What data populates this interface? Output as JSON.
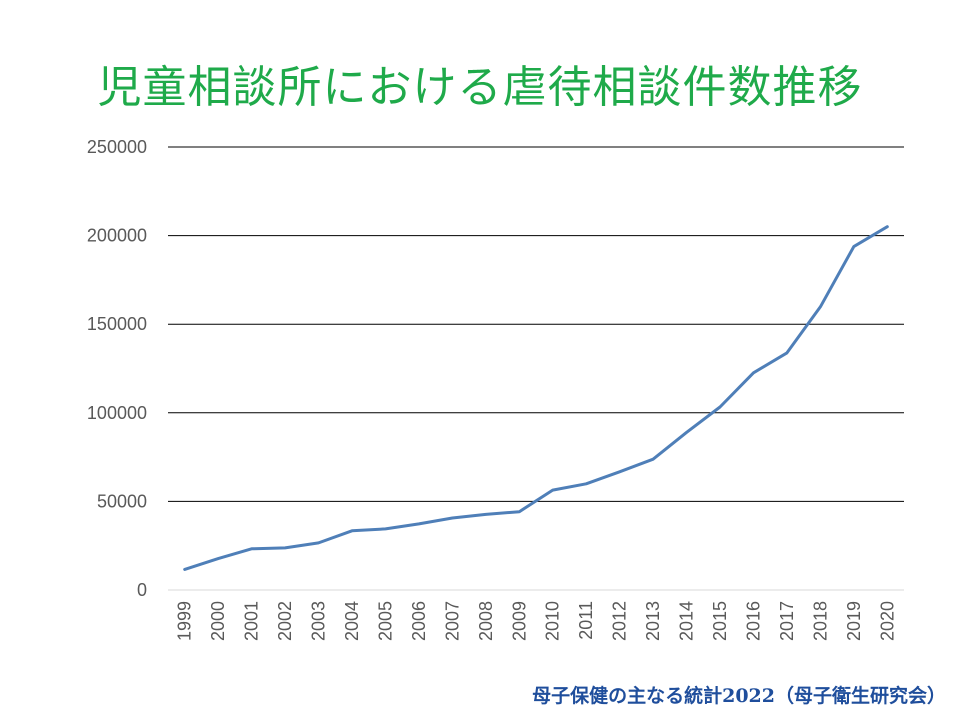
{
  "slide": {
    "title": "児童相談所における虐待相談件数推移",
    "source": "母子保健の主なる統計2022（母子衛生研究会）"
  },
  "colors": {
    "title": "#1faa4a",
    "source": "#1f4e9c",
    "series_line": "#4f7fb8",
    "gridline": "#000000",
    "axis_text": "#595959"
  },
  "chart_data": {
    "type": "line",
    "title": "児童相談所における虐待相談件数推移",
    "xlabel": "",
    "ylabel": "",
    "categories": [
      "1999",
      "2000",
      "2001",
      "2002",
      "2003",
      "2004",
      "2005",
      "2006",
      "2007",
      "2008",
      "2009",
      "2010",
      "2011",
      "2012",
      "2013",
      "2014",
      "2015",
      "2016",
      "2017",
      "2018",
      "2019",
      "2020"
    ],
    "series": [
      {
        "values": [
          11631,
          17725,
          23274,
          23738,
          26569,
          33408,
          34472,
          37323,
          40639,
          42664,
          44211,
          56384,
          59919,
          66701,
          73802,
          88931,
          103286,
          122575,
          133778,
          159838,
          193780,
          205044
        ]
      }
    ],
    "yticks": [
      "0",
      "50000",
      "100000",
      "150000",
      "200000",
      "250000"
    ],
    "ylim": [
      0,
      250000
    ],
    "grid": true,
    "legend": "none",
    "x_tick_rotation": "vertical"
  }
}
